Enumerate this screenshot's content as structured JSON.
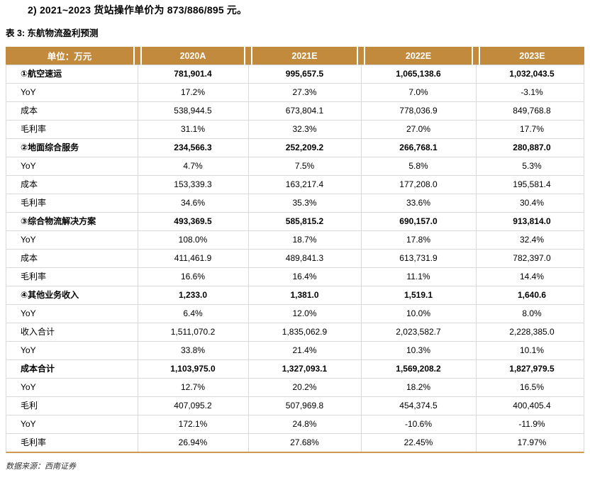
{
  "intro": {
    "text": "2) 2021~2023 货站操作单价为 873/886/895 元。"
  },
  "table": {
    "title": "表 3: 东航物流盈利预测",
    "unit_header": "单位：万元",
    "year_headers": [
      "2020A",
      "2021E",
      "2022E",
      "2023E"
    ],
    "rows": [
      {
        "label": "①航空速运",
        "values": [
          "781,901.4",
          "995,657.5",
          "1,065,138.6",
          "1,032,043.5"
        ],
        "bold": true
      },
      {
        "label": "YoY",
        "values": [
          "17.2%",
          "27.3%",
          "7.0%",
          "-3.1%"
        ],
        "bold": false
      },
      {
        "label": "成本",
        "values": [
          "538,944.5",
          "673,804.1",
          "778,036.9",
          "849,768.8"
        ],
        "bold": false
      },
      {
        "label": "毛利率",
        "values": [
          "31.1%",
          "32.3%",
          "27.0%",
          "17.7%"
        ],
        "bold": false
      },
      {
        "label": "②地面综合服务",
        "values": [
          "234,566.3",
          "252,209.2",
          "266,768.1",
          "280,887.0"
        ],
        "bold": true
      },
      {
        "label": "YoY",
        "values": [
          "4.7%",
          "7.5%",
          "5.8%",
          "5.3%"
        ],
        "bold": false
      },
      {
        "label": "成本",
        "values": [
          "153,339.3",
          "163,217.4",
          "177,208.0",
          "195,581.4"
        ],
        "bold": false
      },
      {
        "label": "毛利率",
        "values": [
          "34.6%",
          "35.3%",
          "33.6%",
          "30.4%"
        ],
        "bold": false
      },
      {
        "label": "③综合物流解决方案",
        "values": [
          "493,369.5",
          "585,815.2",
          "690,157.0",
          "913,814.0"
        ],
        "bold": true
      },
      {
        "label": "YoY",
        "values": [
          "108.0%",
          "18.7%",
          "17.8%",
          "32.4%"
        ],
        "bold": false
      },
      {
        "label": "成本",
        "values": [
          "411,461.9",
          "489,841.3",
          "613,731.9",
          "782,397.0"
        ],
        "bold": false
      },
      {
        "label": "毛利率",
        "values": [
          "16.6%",
          "16.4%",
          "11.1%",
          "14.4%"
        ],
        "bold": false
      },
      {
        "label": "④其他业务收入",
        "values": [
          "1,233.0",
          "1,381.0",
          "1,519.1",
          "1,640.6"
        ],
        "bold": true
      },
      {
        "label": "YoY",
        "values": [
          "6.4%",
          "12.0%",
          "10.0%",
          "8.0%"
        ],
        "bold": false
      },
      {
        "label": "收入合计",
        "values": [
          "1,511,070.2",
          "1,835,062.9",
          "2,023,582.7",
          "2,228,385.0"
        ],
        "bold": false
      },
      {
        "label": "YoY",
        "values": [
          "33.8%",
          "21.4%",
          "10.3%",
          "10.1%"
        ],
        "bold": false
      },
      {
        "label": "成本合计",
        "values": [
          "1,103,975.0",
          "1,327,093.1",
          "1,569,208.2",
          "1,827,979.5"
        ],
        "bold": true
      },
      {
        "label": "YoY",
        "values": [
          "12.7%",
          "20.2%",
          "18.2%",
          "16.5%"
        ],
        "bold": false
      },
      {
        "label": "毛利",
        "values": [
          "407,095.2",
          "507,969.8",
          "454,374.5",
          "400,405.4"
        ],
        "bold": false
      },
      {
        "label": "YoY",
        "values": [
          "172.1%",
          "24.8%",
          "-10.6%",
          "-11.9%"
        ],
        "bold": false
      },
      {
        "label": "毛利率",
        "values": [
          "26.94%",
          "27.68%",
          "22.45%",
          "17.97%"
        ],
        "bold": false
      }
    ],
    "source": "数据来源：西南证券"
  },
  "colors": {
    "header_gold": "#C28A3D",
    "table_bottom_border": "#D09A4E",
    "grid_line": "#D9D9D9"
  }
}
